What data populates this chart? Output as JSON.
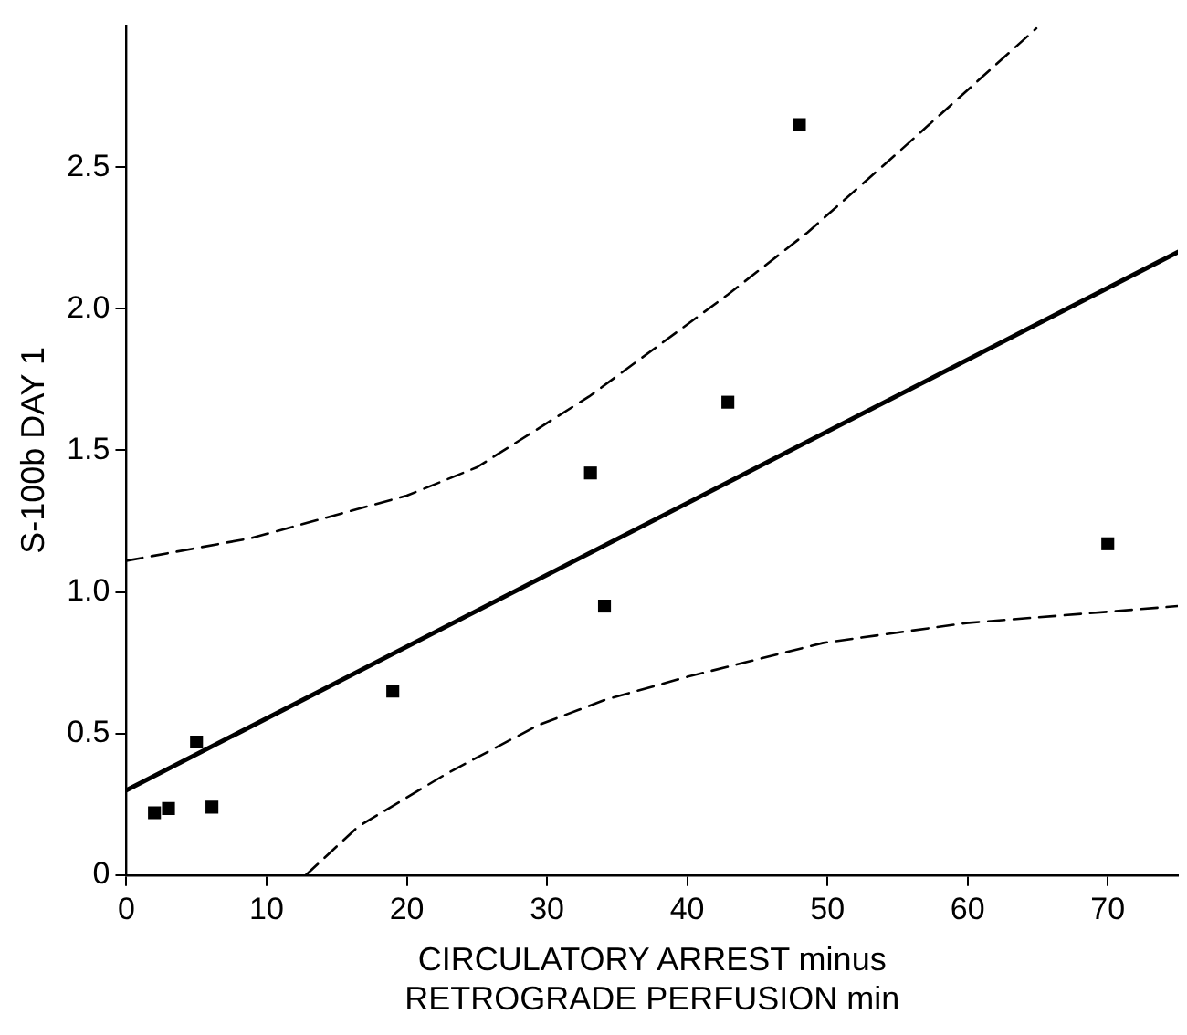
{
  "chart_data": {
    "type": "scatter",
    "xlabel": "CIRCULATORY ARREST minus\nRETROGRADE PERFUSION min",
    "ylabel": "S-100b DAY 1",
    "xlim": [
      0,
      75
    ],
    "ylim": [
      0,
      3.0
    ],
    "xticks": [
      0,
      10,
      20,
      30,
      40,
      50,
      60,
      70
    ],
    "yticks": [
      0,
      0.5,
      {
        "value": 1,
        "label": "1.0"
      },
      1.5,
      {
        "value": 2,
        "label": "2.0"
      },
      2.5
    ],
    "grid": false,
    "legend": false,
    "series": [
      {
        "color": "#000000",
        "marker": "square",
        "x": [
          2,
          3,
          5,
          6.1,
          19,
          33.1,
          34.1,
          42.9,
          48,
          70
        ],
        "values": [
          0.22,
          0.235,
          0.47,
          0.24,
          0.65,
          1.42,
          0.95,
          1.67,
          2.65,
          1.17
        ]
      },
      {
        "type": "line",
        "color": "#000000",
        "line_style": "solid",
        "marker": "none",
        "x": [
          0,
          75
        ],
        "values": [
          0.3,
          2.2
        ]
      },
      {
        "type": "line",
        "color": "#000000",
        "line_style": "dashed",
        "marker": "none",
        "x": [
          0,
          8.9,
          20,
          25,
          33,
          42.9,
          48.6,
          55,
          64.9
        ],
        "values": [
          1.11,
          1.19,
          1.34,
          1.44,
          1.69,
          2.05,
          2.27,
          2.55,
          2.99
        ]
      },
      {
        "type": "line",
        "color": "#000000",
        "line_style": "dashed",
        "marker": "none",
        "x": [
          12.8,
          16.5,
          22.9,
          29.4,
          34.2,
          40,
          49.7,
          59.9,
          70,
          75
        ],
        "values": [
          0,
          0.17,
          0.36,
          0.53,
          0.62,
          0.7,
          0.82,
          0.89,
          0.93,
          0.95
        ]
      }
    ]
  }
}
